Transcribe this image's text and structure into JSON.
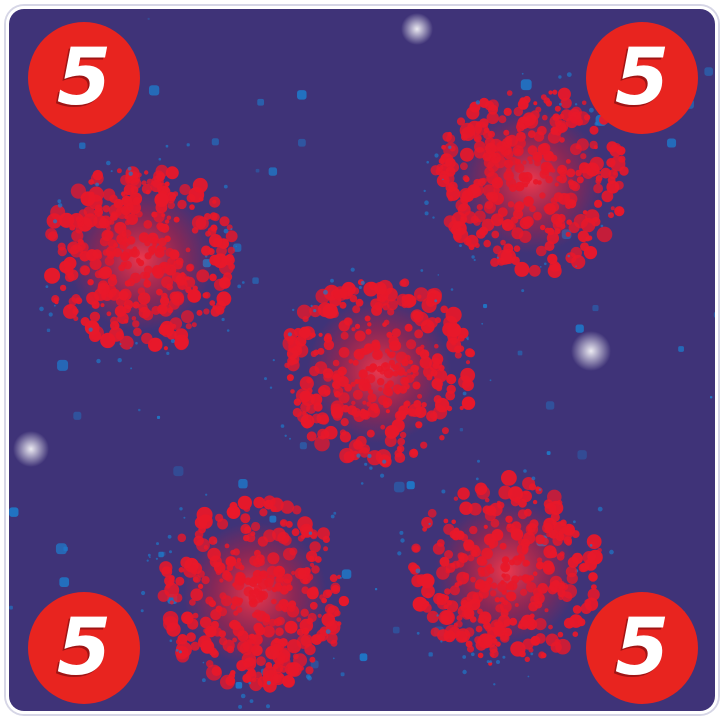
{
  "card": {
    "value": "5",
    "cluster_count": 5,
    "colors": {
      "background": "#3f3378",
      "dots": "#e8182a",
      "corner_badge": "#e8241f",
      "corner_text": "#ffffff",
      "speckle": "#1f78c8",
      "border": "#ffffff"
    }
  }
}
